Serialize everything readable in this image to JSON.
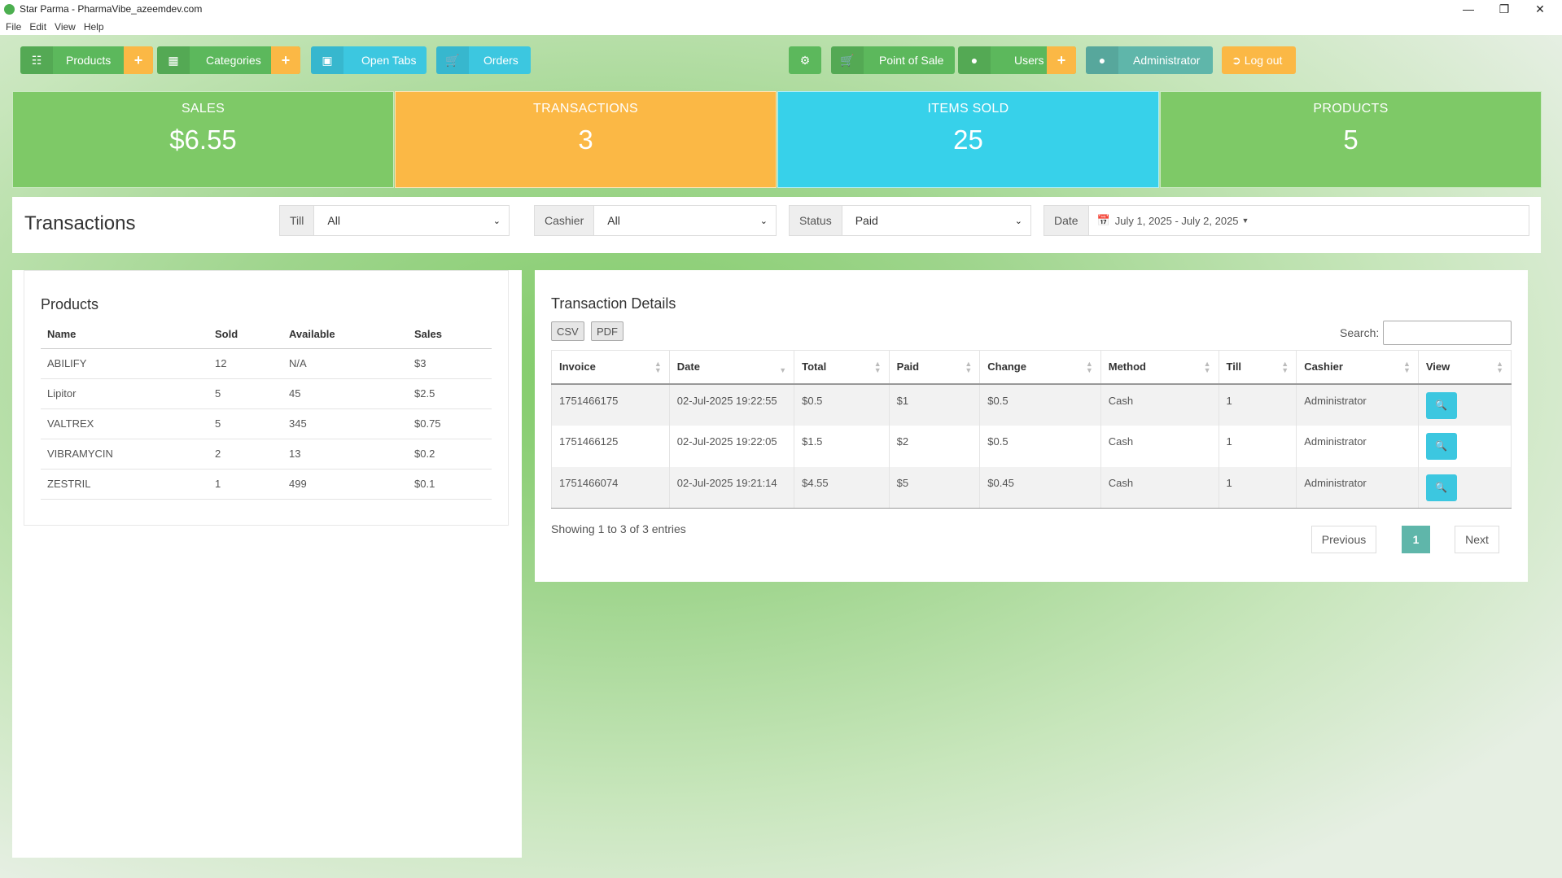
{
  "window": {
    "title": "Star Parma - PharmaVibe_azeemdev.com",
    "minimize": "—",
    "maximize": "❐",
    "close": "✕"
  },
  "menu": [
    "File",
    "Edit",
    "View",
    "Help"
  ],
  "nav": {
    "products": "Products",
    "categories": "Categories",
    "open_tabs": "Open Tabs",
    "orders": "Orders",
    "point_of_sale": "Point of Sale",
    "users": "Users",
    "administrator": "Administrator",
    "logout": "Log out",
    "plus": "+"
  },
  "stats": [
    {
      "label": "SALES",
      "value": "$6.55"
    },
    {
      "label": "TRANSACTIONS",
      "value": "3"
    },
    {
      "label": "ITEMS SOLD",
      "value": "25"
    },
    {
      "label": "PRODUCTS",
      "value": "5"
    }
  ],
  "filters": {
    "title": "Transactions",
    "till_label": "Till",
    "till_value": "All",
    "cashier_label": "Cashier",
    "cashier_value": "All",
    "status_label": "Status",
    "status_value": "Paid",
    "date_label": "Date",
    "date_value": "July 1, 2025 - July 2, 2025"
  },
  "products_panel": {
    "title": "Products",
    "headers": [
      "Name",
      "Sold",
      "Available",
      "Sales"
    ],
    "rows": [
      [
        "ABILIFY",
        "12",
        "N/A",
        "$3"
      ],
      [
        "Lipitor",
        "5",
        "45",
        "$2.5"
      ],
      [
        "VALTREX",
        "5",
        "345",
        "$0.75"
      ],
      [
        "VIBRAMYCIN",
        "2",
        "13",
        "$0.2"
      ],
      [
        "ZESTRIL",
        "1",
        "499",
        "$0.1"
      ]
    ]
  },
  "tx_panel": {
    "title": "Transaction Details",
    "csv": "CSV",
    "pdf": "PDF",
    "search_label": "Search:",
    "search_value": "",
    "headers": [
      "Invoice",
      "Date",
      "Total",
      "Paid",
      "Change",
      "Method",
      "Till",
      "Cashier",
      "View"
    ],
    "rows": [
      [
        "1751466175",
        "02-Jul-2025 19:22:55",
        "$0.5",
        "$1",
        "$0.5",
        "Cash",
        "1",
        "Administrator"
      ],
      [
        "1751466125",
        "02-Jul-2025 19:22:05",
        "$1.5",
        "$2",
        "$0.5",
        "Cash",
        "1",
        "Administrator"
      ],
      [
        "1751466074",
        "02-Jul-2025 19:21:14",
        "$4.55",
        "$5",
        "$0.45",
        "Cash",
        "1",
        "Administrator"
      ]
    ],
    "info": "Showing 1 to 3 of 3 entries",
    "previous": "Previous",
    "page": "1",
    "next": "Next"
  },
  "colors": {
    "green": "#5cb85c",
    "orange": "#fbb845",
    "cyan": "#3cc7e0",
    "teal": "#5fb6aa",
    "tile_green": "#7ec967"
  }
}
